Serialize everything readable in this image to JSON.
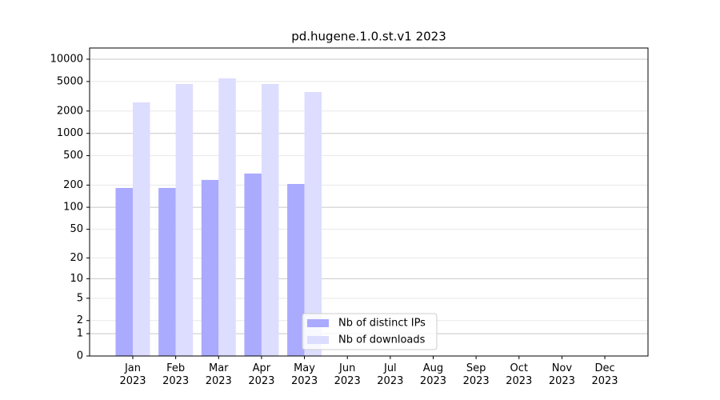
{
  "chart_data": {
    "type": "bar",
    "title": "pd.hugene.1.0.st.v1 2023",
    "categories": [
      "Jan\n2023",
      "Feb\n2023",
      "Mar\n2023",
      "Apr\n2023",
      "May\n2023",
      "Jun\n2023",
      "Jul\n2023",
      "Aug\n2023",
      "Sep\n2023",
      "Oct\n2023",
      "Nov\n2023",
      "Dec\n2023"
    ],
    "series": [
      {
        "name": "Nb of distinct IPs",
        "color": "#aaaaff",
        "values": [
          183,
          183,
          235,
          287,
          207,
          null,
          null,
          null,
          null,
          null,
          null,
          null
        ]
      },
      {
        "name": "Nb of downloads",
        "color": "#ddddff",
        "values": [
          2617,
          4630,
          5510,
          4630,
          3610,
          null,
          null,
          null,
          null,
          null,
          null,
          null
        ]
      }
    ],
    "yscale": "log1p",
    "ylim": [
      0,
      14150
    ],
    "yticks": [
      0,
      1,
      2,
      5,
      10,
      20,
      50,
      100,
      200,
      500,
      1000,
      2000,
      5000,
      10000
    ],
    "grid": true,
    "legend": "lower center"
  }
}
